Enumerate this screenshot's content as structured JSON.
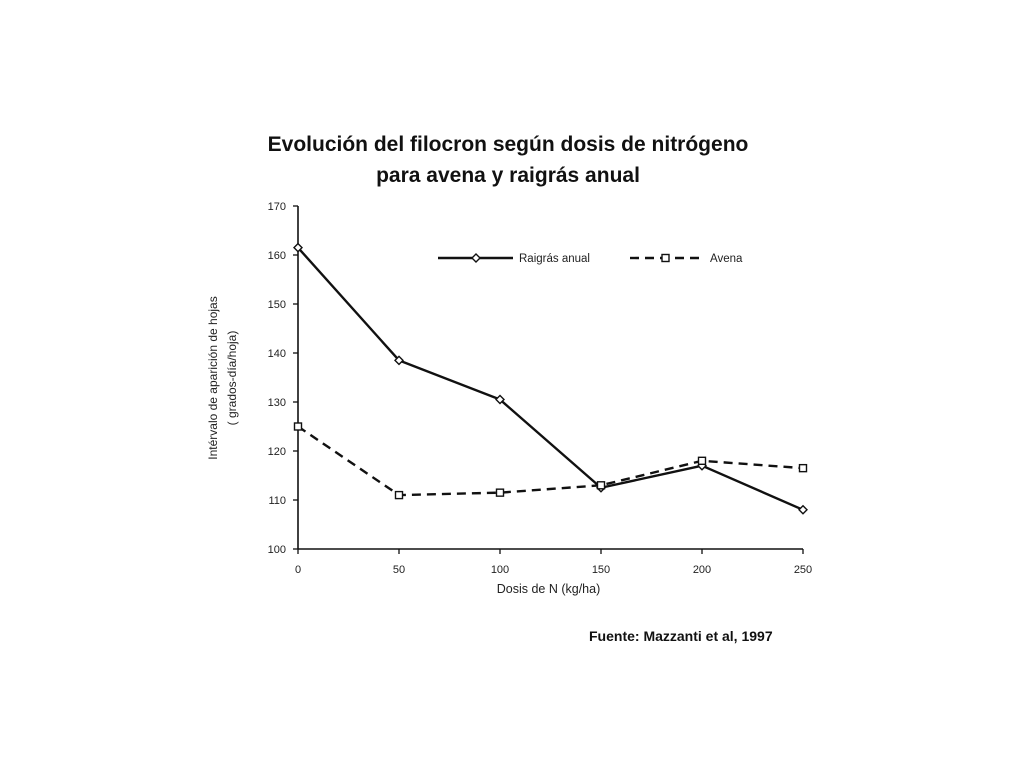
{
  "title_line1": "Evolución del filocron según dosis de nitrógeno",
  "title_line2": "para avena y raigrás anual",
  "source": "Fuente:  Mazzanti et al, 1997",
  "chart_data": {
    "type": "line",
    "title": "Evolución del filocron según dosis de nitrógeno para avena y raigrás anual",
    "xlabel": "Dosis de N (kg/ha)",
    "ylabel_line1": "Intérvalo de aparición de hojas",
    "ylabel_line2": "( grados-día/hoja)",
    "x": [
      0,
      50,
      100,
      150,
      200,
      250
    ],
    "xlim": [
      0,
      250
    ],
    "ylim": [
      100,
      170
    ],
    "xticks": [
      "0",
      "50",
      "100",
      "150",
      "200",
      "250"
    ],
    "yticks": [
      "100",
      "110",
      "120",
      "130",
      "140",
      "150",
      "160",
      "170"
    ],
    "grid": false,
    "legend_position": "top-right",
    "series": [
      {
        "name": "Raigrás anual",
        "values": [
          161.5,
          138.5,
          130.5,
          112.5,
          117,
          108
        ],
        "style": "solid",
        "marker": "diamond",
        "color": "#111111"
      },
      {
        "name": "Avena",
        "values": [
          125,
          111,
          111.5,
          113,
          118,
          116.5
        ],
        "style": "dashed",
        "marker": "square",
        "color": "#111111"
      }
    ]
  }
}
